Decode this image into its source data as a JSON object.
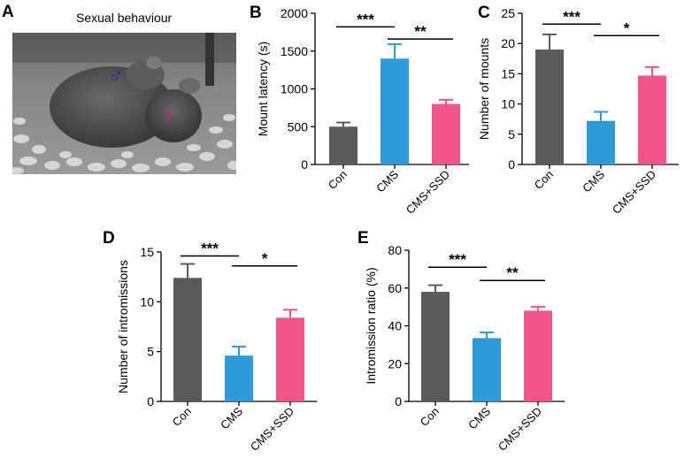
{
  "figure": {
    "panel_a": {
      "letter": "A",
      "title": "Sexual behaviour",
      "male_symbol": "♂",
      "female_symbol": "♀",
      "male_symbol_color": "#1b2ba8",
      "female_symbol_color": "#e0207a"
    }
  },
  "colors": {
    "Con": "#5b5b5b",
    "CMS": "#2f9ad8",
    "CMS+SSD": "#f2538a"
  },
  "chart_data": [
    {
      "panel": "B",
      "type": "bar",
      "title": "",
      "xlabel": "",
      "ylabel": "Mount latency (s)",
      "categories": [
        "Con",
        "CMS",
        "CMS+SSD"
      ],
      "values": [
        500,
        1400,
        800
      ],
      "errors": [
        55,
        190,
        55
      ],
      "ylim": [
        0,
        2000
      ],
      "yticks": [
        "0",
        "500",
        "1000",
        "1500",
        "2000"
      ],
      "significance": [
        {
          "from": 0,
          "to": 1,
          "label": "***",
          "y": 1820
        },
        {
          "from": 1,
          "to": 2,
          "label": "**",
          "y": 1660
        }
      ]
    },
    {
      "panel": "C",
      "type": "bar",
      "title": "",
      "xlabel": "",
      "ylabel": "Number of  mounts",
      "categories": [
        "Con",
        "CMS",
        "CMS+SSD"
      ],
      "values": [
        19,
        7.2,
        14.7
      ],
      "errors": [
        2.5,
        1.5,
        1.4
      ],
      "ylim": [
        0,
        25
      ],
      "yticks": [
        "0",
        "5",
        "10",
        "15",
        "20",
        "25"
      ],
      "significance": [
        {
          "from": 0,
          "to": 1,
          "label": "***",
          "y": 23.2
        },
        {
          "from": 1,
          "to": 2,
          "label": "*",
          "y": 21.3
        }
      ]
    },
    {
      "panel": "D",
      "type": "bar",
      "title": "",
      "xlabel": "",
      "ylabel": "Number of intromissions",
      "categories": [
        "Con",
        "CMS",
        "CMS+SSD"
      ],
      "values": [
        12.4,
        4.6,
        8.4
      ],
      "errors": [
        1.4,
        0.9,
        0.8
      ],
      "ylim": [
        0,
        15
      ],
      "yticks": [
        "0",
        "5",
        "10",
        "15"
      ],
      "significance": [
        {
          "from": 0,
          "to": 1,
          "label": "***",
          "y": 14.6
        },
        {
          "from": 1,
          "to": 2,
          "label": "*",
          "y": 13.6
        }
      ]
    },
    {
      "panel": "E",
      "type": "bar",
      "title": "",
      "xlabel": "",
      "ylabel": "Intromission ratio (%)",
      "categories": [
        "Con",
        "CMS",
        "CMS+SSD"
      ],
      "values": [
        58,
        33.5,
        48
      ],
      "errors": [
        3.5,
        3,
        2
      ],
      "ylim": [
        0,
        80
      ],
      "yticks": [
        "0",
        "20",
        "40",
        "60",
        "80"
      ],
      "significance": [
        {
          "from": 0,
          "to": 1,
          "label": "***",
          "y": 71
        },
        {
          "from": 1,
          "to": 2,
          "label": "**",
          "y": 64
        }
      ]
    }
  ]
}
